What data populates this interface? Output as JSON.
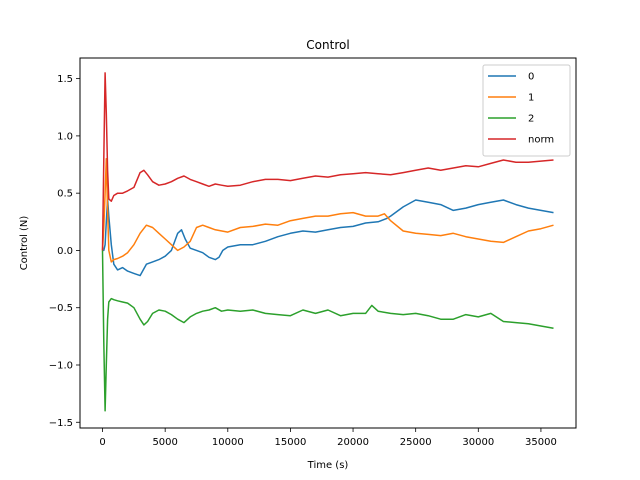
{
  "chart_data": {
    "type": "line",
    "title": "Control",
    "xlabel": "Time (s)",
    "ylabel": "Control (N)",
    "xlim": [
      -1800,
      37800
    ],
    "ylim": [
      -1.55,
      1.68
    ],
    "xticks": [
      0,
      5000,
      10000,
      15000,
      20000,
      25000,
      30000,
      35000
    ],
    "xtick_labels": [
      "0",
      "5000",
      "10000",
      "15000",
      "20000",
      "25000",
      "30000",
      "35000"
    ],
    "yticks": [
      -1.5,
      -1.0,
      -0.5,
      0.0,
      0.5,
      1.0,
      1.5
    ],
    "ytick_labels": [
      "−1.5",
      "−1.0",
      "−0.5",
      "0.0",
      "0.5",
      "1.0",
      "1.5"
    ],
    "grid": false,
    "legend_position": "upper-right",
    "series": [
      {
        "name": "0",
        "color": "#1f77b4",
        "x": [
          0,
          100,
          200,
          300,
          400,
          500,
          700,
          900,
          1200,
          1600,
          2000,
          2500,
          3000,
          3500,
          4000,
          4500,
          5000,
          5500,
          6000,
          6300,
          6600,
          7000,
          7500,
          8000,
          8500,
          9000,
          9300,
          9600,
          10000,
          11000,
          12000,
          13000,
          14000,
          15000,
          16000,
          17000,
          18000,
          19000,
          20000,
          21000,
          22000,
          22700,
          23000,
          24000,
          25000,
          26000,
          27000,
          28000,
          29000,
          30000,
          31000,
          32000,
          33000,
          34000,
          35000,
          36000
        ],
        "y": [
          0.0,
          0.0,
          0.05,
          0.25,
          0.45,
          0.3,
          0.05,
          -0.12,
          -0.17,
          -0.15,
          -0.18,
          -0.2,
          -0.22,
          -0.12,
          -0.1,
          -0.08,
          -0.05,
          0.0,
          0.15,
          0.18,
          0.1,
          0.02,
          0.0,
          -0.02,
          -0.06,
          -0.08,
          -0.06,
          0.0,
          0.03,
          0.05,
          0.05,
          0.08,
          0.12,
          0.15,
          0.17,
          0.16,
          0.18,
          0.2,
          0.21,
          0.24,
          0.25,
          0.28,
          0.3,
          0.38,
          0.44,
          0.42,
          0.4,
          0.35,
          0.37,
          0.4,
          0.42,
          0.44,
          0.4,
          0.37,
          0.35,
          0.33
        ]
      },
      {
        "name": "1",
        "color": "#ff7f0e",
        "x": [
          0,
          100,
          200,
          300,
          400,
          500,
          700,
          900,
          1200,
          1600,
          2000,
          2500,
          3000,
          3500,
          4000,
          4500,
          5000,
          5500,
          6000,
          6500,
          7000,
          7500,
          8000,
          8500,
          9000,
          10000,
          11000,
          12000,
          13000,
          14000,
          15000,
          16000,
          17000,
          18000,
          19000,
          20000,
          21000,
          22000,
          22500,
          23000,
          24000,
          25000,
          26000,
          27000,
          28000,
          29000,
          30000,
          31000,
          32000,
          33000,
          34000,
          35000,
          36000
        ],
        "y": [
          0.0,
          0.2,
          0.5,
          0.8,
          0.35,
          0.0,
          -0.1,
          -0.08,
          -0.07,
          -0.05,
          -0.02,
          0.05,
          0.15,
          0.22,
          0.2,
          0.15,
          0.1,
          0.05,
          0.0,
          0.03,
          0.08,
          0.2,
          0.22,
          0.2,
          0.18,
          0.16,
          0.2,
          0.21,
          0.23,
          0.22,
          0.26,
          0.28,
          0.3,
          0.3,
          0.32,
          0.33,
          0.3,
          0.3,
          0.32,
          0.26,
          0.17,
          0.15,
          0.14,
          0.13,
          0.15,
          0.12,
          0.1,
          0.08,
          0.07,
          0.12,
          0.17,
          0.19,
          0.22
        ]
      },
      {
        "name": "2",
        "color": "#2ca02c",
        "x": [
          0,
          100,
          200,
          300,
          400,
          500,
          700,
          900,
          1200,
          1600,
          2000,
          2500,
          3000,
          3300,
          3600,
          4000,
          4500,
          5000,
          5500,
          6000,
          6500,
          7000,
          7500,
          8000,
          8500,
          9000,
          9500,
          10000,
          11000,
          12000,
          13000,
          14000,
          15000,
          16000,
          17000,
          18000,
          19000,
          20000,
          21000,
          21500,
          22000,
          23000,
          24000,
          25000,
          26000,
          27000,
          28000,
          29000,
          30000,
          31000,
          32000,
          33000,
          34000,
          35000,
          36000
        ],
        "y": [
          0.0,
          -0.8,
          -1.4,
          -1.0,
          -0.6,
          -0.45,
          -0.42,
          -0.43,
          -0.44,
          -0.45,
          -0.46,
          -0.5,
          -0.6,
          -0.65,
          -0.62,
          -0.55,
          -0.52,
          -0.53,
          -0.56,
          -0.6,
          -0.63,
          -0.58,
          -0.55,
          -0.53,
          -0.52,
          -0.5,
          -0.53,
          -0.52,
          -0.53,
          -0.52,
          -0.55,
          -0.56,
          -0.57,
          -0.52,
          -0.55,
          -0.52,
          -0.57,
          -0.55,
          -0.55,
          -0.48,
          -0.53,
          -0.55,
          -0.56,
          -0.55,
          -0.57,
          -0.6,
          -0.6,
          -0.56,
          -0.58,
          -0.55,
          -0.62,
          -0.63,
          -0.64,
          -0.66,
          -0.68
        ]
      },
      {
        "name": "norm",
        "color": "#d62728",
        "x": [
          0,
          100,
          200,
          300,
          400,
          500,
          700,
          900,
          1200,
          1600,
          2000,
          2500,
          3000,
          3300,
          3600,
          4000,
          4500,
          5000,
          5500,
          6000,
          6500,
          7000,
          7500,
          8000,
          8500,
          9000,
          9500,
          10000,
          11000,
          12000,
          13000,
          14000,
          15000,
          16000,
          17000,
          18000,
          19000,
          20000,
          21000,
          22000,
          23000,
          24000,
          25000,
          26000,
          27000,
          28000,
          29000,
          30000,
          31000,
          32000,
          33000,
          34000,
          35000,
          36000
        ],
        "y": [
          0.0,
          0.8,
          1.55,
          1.2,
          0.7,
          0.45,
          0.43,
          0.48,
          0.5,
          0.5,
          0.52,
          0.55,
          0.68,
          0.7,
          0.66,
          0.6,
          0.57,
          0.58,
          0.6,
          0.63,
          0.65,
          0.62,
          0.6,
          0.58,
          0.56,
          0.58,
          0.57,
          0.56,
          0.57,
          0.6,
          0.62,
          0.62,
          0.61,
          0.63,
          0.65,
          0.64,
          0.66,
          0.67,
          0.68,
          0.67,
          0.66,
          0.68,
          0.7,
          0.72,
          0.7,
          0.72,
          0.74,
          0.73,
          0.76,
          0.79,
          0.77,
          0.77,
          0.78,
          0.79
        ]
      }
    ]
  }
}
